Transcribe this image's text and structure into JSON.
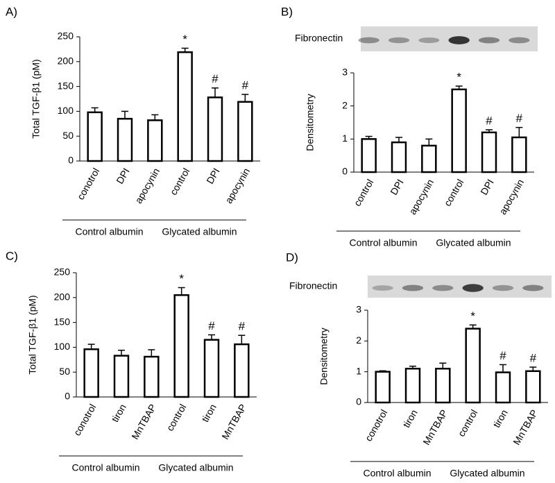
{
  "chart_data": [
    {
      "type": "bar",
      "panel": "A)",
      "ylabel": "Total TGF-β1 (pM)",
      "categories": [
        "conotrol",
        "DPI",
        "apocynin",
        "control",
        "DPI",
        "apocynin"
      ],
      "values": [
        98,
        85,
        82,
        219,
        128,
        119
      ],
      "errors": [
        9,
        15,
        11,
        8,
        19,
        15
      ],
      "annotations": [
        null,
        null,
        null,
        "*",
        "#",
        "#"
      ],
      "groups": [
        "Control albumin",
        "Glycated albumin"
      ],
      "ylim": [
        0,
        250
      ],
      "yticks": [
        0,
        50,
        100,
        150,
        200,
        250
      ]
    },
    {
      "type": "bar",
      "panel": "B)",
      "ylabel": "Densitometry",
      "blot_label": "Fibronectin",
      "categories": [
        "control",
        "DPI",
        "apocynin",
        "control",
        "DPI",
        "apocynin"
      ],
      "values": [
        1.0,
        0.9,
        0.8,
        2.5,
        1.2,
        1.05
      ],
      "errors": [
        0.08,
        0.15,
        0.2,
        0.1,
        0.08,
        0.3
      ],
      "annotations": [
        null,
        null,
        null,
        "*",
        "#",
        "#"
      ],
      "groups": [
        "Control albumin",
        "Glycated albumin"
      ],
      "ylim": [
        0,
        3
      ],
      "yticks": [
        0,
        1,
        2,
        3
      ]
    },
    {
      "type": "bar",
      "panel": "C)",
      "ylabel": "Total TGF-β1 (pM)",
      "categories": [
        "conotrol",
        "tiron",
        "MnTBAP",
        "control",
        "tiron",
        "MnTBAP"
      ],
      "values": [
        96,
        83,
        81,
        205,
        115,
        106
      ],
      "errors": [
        10,
        11,
        14,
        15,
        10,
        18
      ],
      "annotations": [
        null,
        null,
        null,
        "*",
        "#",
        "#"
      ],
      "groups": [
        "Control albumin",
        "Glycated albumin"
      ],
      "ylim": [
        0,
        250
      ],
      "yticks": [
        0,
        50,
        100,
        150,
        200,
        250
      ]
    },
    {
      "type": "bar",
      "panel": "D)",
      "ylabel": "Densitometry",
      "blot_label": "Fibronectin",
      "categories": [
        "conotrol",
        "tiron",
        "MnTBAP",
        "control",
        "tiron",
        "MnTBAP"
      ],
      "values": [
        1.0,
        1.1,
        1.1,
        2.4,
        0.98,
        1.02
      ],
      "errors": [
        0.03,
        0.08,
        0.18,
        0.12,
        0.25,
        0.13
      ],
      "annotations": [
        null,
        null,
        null,
        "*",
        "#",
        "#"
      ],
      "groups": [
        "Control albumin",
        "Glycated albumin"
      ],
      "ylim": [
        0,
        3
      ],
      "yticks": [
        0,
        1,
        2,
        3
      ]
    }
  ]
}
